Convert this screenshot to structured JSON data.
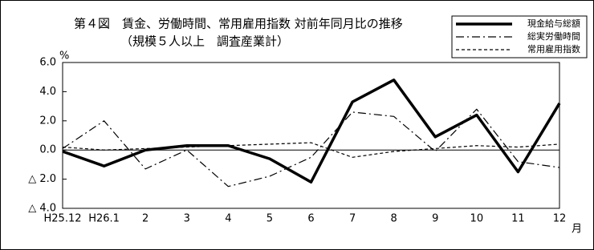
{
  "chart_data": {
    "type": "line",
    "title": "第４図　賃金、労働時間、常用雇用指数 対前年同月比の推移",
    "subtitle": "（規模５人以上　調査産業計）",
    "y_label": "%",
    "x_label": "月",
    "categories": [
      "H25.12",
      "H26.1",
      "2",
      "3",
      "4",
      "5",
      "6",
      "7",
      "8",
      "9",
      "10",
      "11",
      "12"
    ],
    "series": [
      {
        "name": "現金給与総額",
        "color": "#000000",
        "dash": "solid",
        "width": 3.5,
        "values": [
          -0.1,
          -1.1,
          0.0,
          0.3,
          0.3,
          -0.6,
          -2.2,
          3.3,
          4.8,
          0.9,
          2.4,
          -1.5,
          3.2
        ]
      },
      {
        "name": "総実労働時間",
        "color": "#000000",
        "dash": "dashdot",
        "width": 1.2,
        "values": [
          0.1,
          2.0,
          -1.3,
          0.0,
          -2.5,
          -1.8,
          -0.5,
          2.6,
          2.3,
          -0.1,
          2.8,
          -0.8,
          -1.2
        ]
      },
      {
        "name": "常用雇用指数",
        "color": "#000000",
        "dash": "dashed",
        "width": 1.2,
        "values": [
          0.2,
          0.0,
          0.1,
          0.2,
          0.3,
          0.4,
          0.5,
          -0.5,
          -0.1,
          0.1,
          0.3,
          0.2,
          0.4
        ]
      }
    ],
    "ylim": [
      -4,
      6
    ],
    "yticks": [
      {
        "value": 6,
        "label": "6.0"
      },
      {
        "value": 4,
        "label": "4.0"
      },
      {
        "value": 2,
        "label": "2.0"
      },
      {
        "value": 0,
        "label": "0.0"
      },
      {
        "value": -2,
        "label": "△ 2.0"
      },
      {
        "value": -4,
        "label": "△ 4.0"
      }
    ],
    "zero_line": true,
    "legend": "upper right"
  }
}
